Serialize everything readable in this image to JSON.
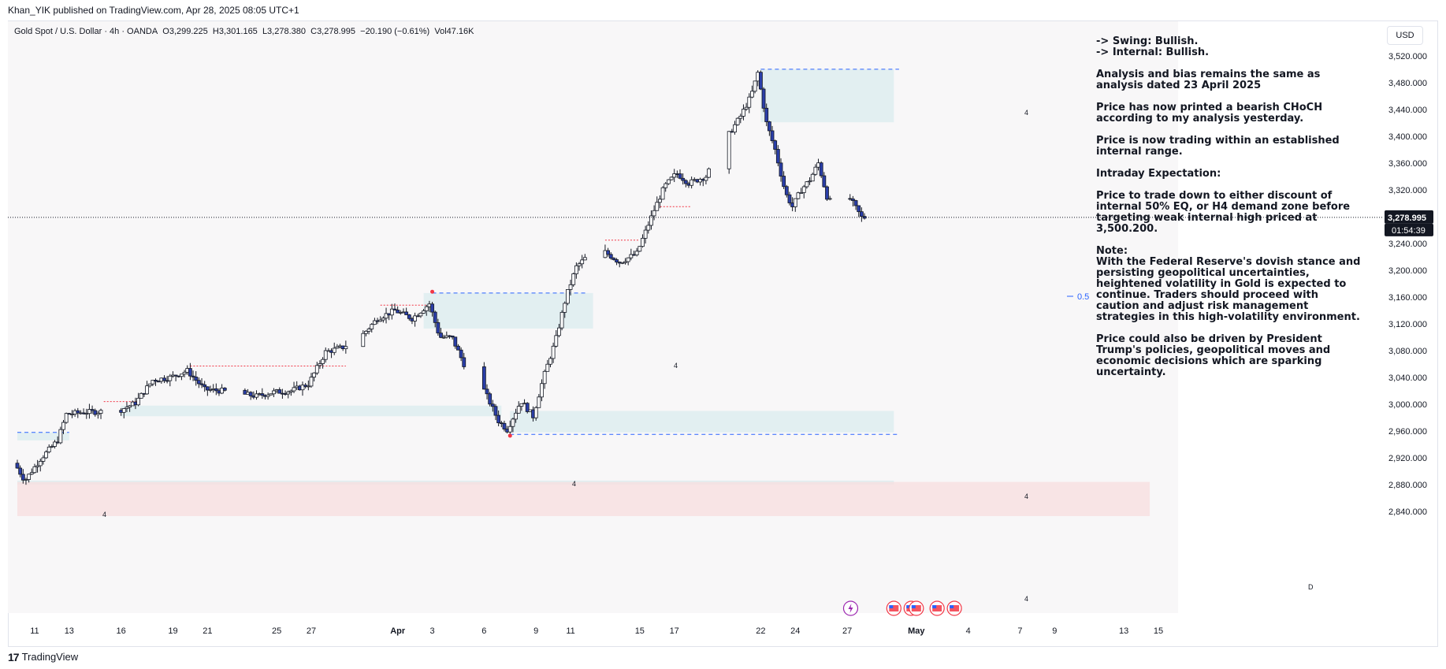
{
  "header": {
    "publisher_line": "Khan_YIK published on TradingView.com, Apr 28, 2025 08:05 UTC+1"
  },
  "symbol": {
    "name": "Gold Spot / U.S. Dollar · 4h · OANDA",
    "open": "O3,299.225",
    "high": "H3,301.165",
    "low": "L3,278.380",
    "close": "C3,278.995",
    "change": "−20.190 (−0.61%)",
    "volume": "Vol47.16K"
  },
  "currency": "USD",
  "price_label": {
    "price": "3,278.995",
    "countdown": "01:54:39"
  },
  "notes": [
    "-> Swing:  Bullish.\n-> Internal:  Bullish.",
    "Analysis and bias remains the same as analysis dated 23 April 2025",
    "Price has now printed a bearish CHoCH according to my analysis yesterday.",
    "Price is now trading within an established internal range.",
    "Intraday Expectation:",
    "Price to trade down to either discount of internal 50% EQ, or H4 demand zone before targeting weak internal high priced at 3,500.200.",
    "Note:\nWith the Federal Reserve's dovish stance and persisting geopolitical uncertainties, heightened volatility in Gold is expected to continue. Traders should proceed with caution and adjust risk management strategies in this high-volatility environment.",
    "Price could also be driven by President Trump's policies, geopolitical moves and economic decisions which are sparking uncertainty."
  ],
  "annotations": {
    "eq_label": "0.5",
    "zone_tag": "4",
    "daily_tag": "D"
  },
  "footer": {
    "logo_mark": "17",
    "brand": "TradingView"
  },
  "colors": {
    "bull": "#ffffff",
    "bear": "#2a3ea8",
    "wick": "#131722",
    "demand_zone": "#dbecef",
    "daily_zone": "#f8dfe0",
    "blue_dash": "#2962ff",
    "red_dash": "#f23645"
  },
  "chart_data": {
    "type": "candlestick",
    "timeframe": "4h",
    "ylim": [
      2810,
      3550
    ],
    "yticks": [
      2840,
      2880,
      2920,
      2960,
      3000,
      3040,
      3080,
      3120,
      3160,
      3200,
      3240,
      3280,
      3320,
      3360,
      3400,
      3440,
      3480,
      3520
    ],
    "ytick_labels": [
      "2,840.000",
      "2,880.000",
      "2,920.000",
      "2,960.000",
      "3,000.000",
      "3,040.000",
      "3,080.000",
      "3,120.000",
      "3,160.000",
      "3,200.000",
      "3,240.000",
      "3,280.000",
      "3,320.000",
      "3,360.000",
      "3,400.000",
      "3,440.000",
      "3,480.000",
      "3,520.000"
    ],
    "date_start": "2025-03-10",
    "date_end": "2025-05-16",
    "xticks": [
      {
        "date": "2025-03-11",
        "label": "11"
      },
      {
        "date": "2025-03-13",
        "label": "13"
      },
      {
        "date": "2025-03-16",
        "label": "16"
      },
      {
        "date": "2025-03-19",
        "label": "19"
      },
      {
        "date": "2025-03-21",
        "label": "21"
      },
      {
        "date": "2025-03-25",
        "label": "25"
      },
      {
        "date": "2025-03-27",
        "label": "27"
      },
      {
        "date": "2025-04-01",
        "label": "Apr"
      },
      {
        "date": "2025-04-03",
        "label": "3"
      },
      {
        "date": "2025-04-06",
        "label": "6"
      },
      {
        "date": "2025-04-09",
        "label": "9"
      },
      {
        "date": "2025-04-11",
        "label": "11"
      },
      {
        "date": "2025-04-15",
        "label": "15"
      },
      {
        "date": "2025-04-17",
        "label": "17"
      },
      {
        "date": "2025-04-22",
        "label": "22"
      },
      {
        "date": "2025-04-24",
        "label": "24"
      },
      {
        "date": "2025-04-27",
        "label": "27"
      },
      {
        "date": "2025-05-01",
        "label": "May"
      },
      {
        "date": "2025-05-04",
        "label": "4"
      },
      {
        "date": "2025-05-07",
        "label": "7"
      },
      {
        "date": "2025-05-09",
        "label": "9"
      },
      {
        "date": "2025-05-13",
        "label": "13"
      },
      {
        "date": "2025-05-15",
        "label": "15"
      }
    ],
    "price_path": [
      {
        "date": "2025-03-10",
        "price": 2912
      },
      {
        "date": "2025-03-10.6",
        "price": 2886
      },
      {
        "date": "2025-03-11.5",
        "price": 2918
      },
      {
        "date": "2025-03-12.5",
        "price": 2946
      },
      {
        "date": "2025-03-13",
        "price": 2985
      },
      {
        "date": "2025-03-14",
        "price": 2988
      },
      {
        "date": "2025-03-16",
        "price": 2990
      },
      {
        "date": "2025-03-17",
        "price": 3002
      },
      {
        "date": "2025-03-18",
        "price": 3036
      },
      {
        "date": "2025-03-19",
        "price": 3040
      },
      {
        "date": "2025-03-20",
        "price": 3050
      },
      {
        "date": "2025-03-21",
        "price": 3022
      },
      {
        "date": "2025-03-22",
        "price": 3020
      },
      {
        "date": "2025-03-24",
        "price": 3012
      },
      {
        "date": "2025-03-25",
        "price": 3018
      },
      {
        "date": "2025-03-26",
        "price": 3020
      },
      {
        "date": "2025-03-27",
        "price": 3030
      },
      {
        "date": "2025-03-28",
        "price": 3078
      },
      {
        "date": "2025-03-29",
        "price": 3085
      },
      {
        "date": "2025-03-30",
        "price": 3100
      },
      {
        "date": "2025-03-31",
        "price": 3128
      },
      {
        "date": "2025-04-01",
        "price": 3140
      },
      {
        "date": "2025-04-02",
        "price": 3128
      },
      {
        "date": "2025-04-03",
        "price": 3150
      },
      {
        "date": "2025-04-03.6",
        "price": 3100
      },
      {
        "date": "2025-04-04.3",
        "price": 3100
      },
      {
        "date": "2025-04-05",
        "price": 3060
      },
      {
        "date": "2025-04-06",
        "price": 3030
      },
      {
        "date": "2025-04-07",
        "price": 2975
      },
      {
        "date": "2025-04-07.5",
        "price": 2962
      },
      {
        "date": "2025-04-08.3",
        "price": 3005
      },
      {
        "date": "2025-04-09",
        "price": 2982
      },
      {
        "date": "2025-04-09.6",
        "price": 3040
      },
      {
        "date": "2025-04-10.3",
        "price": 3095
      },
      {
        "date": "2025-04-10.9",
        "price": 3160
      },
      {
        "date": "2025-04-11.5",
        "price": 3205
      },
      {
        "date": "2025-04-12.3",
        "price": 3225
      },
      {
        "date": "2025-04-13",
        "price": 3230
      },
      {
        "date": "2025-04-14",
        "price": 3212
      },
      {
        "date": "2025-04-15",
        "price": 3225
      },
      {
        "date": "2025-04-16",
        "price": 3290
      },
      {
        "date": "2025-04-16.6",
        "price": 3325
      },
      {
        "date": "2025-04-17.3",
        "price": 3345
      },
      {
        "date": "2025-04-18",
        "price": 3330
      },
      {
        "date": "2025-04-19",
        "price": 3340
      },
      {
        "date": "2025-04-20",
        "price": 3390
      },
      {
        "date": "2025-04-21",
        "price": 3430
      },
      {
        "date": "2025-04-21.6",
        "price": 3460
      },
      {
        "date": "2025-04-22",
        "price": 3495
      },
      {
        "date": "2025-04-22.5",
        "price": 3420
      },
      {
        "date": "2025-04-23",
        "price": 3380
      },
      {
        "date": "2025-04-23.6",
        "price": 3315
      },
      {
        "date": "2025-04-24",
        "price": 3295
      },
      {
        "date": "2025-04-24.5",
        "price": 3320
      },
      {
        "date": "2025-04-25",
        "price": 3335
      },
      {
        "date": "2025-04-25.5",
        "price": 3360
      },
      {
        "date": "2025-04-26",
        "price": 3310
      },
      {
        "date": "2025-04-26.5",
        "price": 3290
      },
      {
        "date": "2025-04-27",
        "price": 3320
      },
      {
        "date": "2025-04-27.5",
        "price": 3300
      },
      {
        "date": "2025-04-28",
        "price": 3279
      }
    ],
    "current_price": 3278.995,
    "zones": [
      {
        "kind": "supply",
        "from": "2025-04-22",
        "to": "2025-04-29.7",
        "low": 3421,
        "high": 3500
      },
      {
        "kind": "demand",
        "from": "2025-04-07.5",
        "to": "2025-04-29.7",
        "low": 2958,
        "high": 2990
      },
      {
        "kind": "demand",
        "from": "2025-04-02.5",
        "to": "2025-04-12.3",
        "low": 3113,
        "high": 3166
      },
      {
        "kind": "demand",
        "from": "2025-03-16",
        "to": "2025-04-07",
        "low": 2982,
        "high": 2998
      },
      {
        "kind": "demand",
        "from": "2025-03-10",
        "to": "2025-03-13",
        "low": 2946,
        "high": 2958
      },
      {
        "kind": "demand",
        "from": "2025-03-10",
        "to": "2025-04-29.7",
        "low": 2880,
        "high": 2886
      },
      {
        "kind": "daily",
        "from": "2025-03-10",
        "to": "2025-05-14.5",
        "low": 2833,
        "high": 2884
      }
    ],
    "levels": [
      {
        "style": "blue-dash",
        "from": "2025-04-22",
        "to": "2025-04-30",
        "price": 3500.2
      },
      {
        "style": "blue-dash",
        "from": "2025-04-07.5",
        "to": "2025-04-30",
        "price": 2955
      },
      {
        "style": "blue-dash",
        "from": "2025-04-03",
        "to": "2025-04-12",
        "price": 3166
      },
      {
        "style": "blue-dash",
        "from": "2025-03-10",
        "to": "2025-03-13",
        "price": 2958
      },
      {
        "style": "red-dash",
        "from": "2025-03-20",
        "to": "2025-03-29",
        "price": 3057
      },
      {
        "style": "red-dash",
        "from": "2025-03-15",
        "to": "2025-03-17",
        "price": 3004
      },
      {
        "style": "red-dash",
        "from": "2025-03-31",
        "to": "2025-04-03",
        "price": 3148
      },
      {
        "style": "red-dash",
        "from": "2025-04-13",
        "to": "2025-04-15",
        "price": 3245
      },
      {
        "style": "red-dash",
        "from": "2025-04-16",
        "to": "2025-04-18",
        "price": 3295
      }
    ],
    "equilibrium": {
      "price": 3250
    },
    "markers": [
      {
        "date": "2025-04-03",
        "price": 3168,
        "kind": "high"
      },
      {
        "date": "2025-04-07.5",
        "price": 2953,
        "kind": "low"
      }
    ],
    "event_icons": [
      {
        "date": "2025-04-27.2",
        "kind": "lightning-icon"
      },
      {
        "date": "2025-04-29.7",
        "kind": "us-flag-icon"
      },
      {
        "date": "2025-04-30.7",
        "kind": "us-flag-icon"
      },
      {
        "date": "2025-05-01",
        "kind": "us-flag-icon"
      },
      {
        "date": "2025-05-02.2",
        "kind": "us-flag-icon"
      },
      {
        "date": "2025-05-03.2",
        "kind": "us-flag-icon"
      }
    ]
  }
}
